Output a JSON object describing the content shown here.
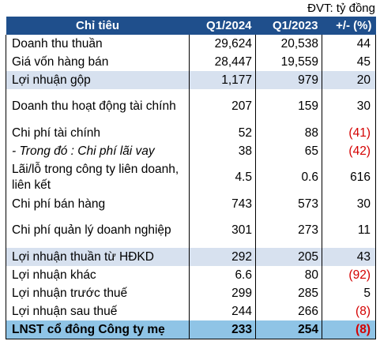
{
  "unit_label": "ĐVT: tỷ đồng",
  "headers": [
    "Chỉ tiêu",
    "Q1/2024",
    "Q1/2023",
    "+/- (%)"
  ],
  "rows": [
    {
      "label": "Doanh thu thuần",
      "q1_2024": "29,624",
      "q1_2023": "20,538",
      "change": "44",
      "negative": false,
      "highlight": false,
      "italic": false,
      "tall": false
    },
    {
      "label": "Giá vốn hàng bán",
      "q1_2024": "28,447",
      "q1_2023": "19,559",
      "change": "45",
      "negative": false,
      "highlight": false,
      "italic": false,
      "tall": false
    },
    {
      "label": "Lợi nhuận gộp",
      "q1_2024": "1,177",
      "q1_2023": "979",
      "change": "20",
      "negative": false,
      "highlight": true,
      "italic": false,
      "tall": false
    },
    {
      "label": "Doanh thu hoạt động tài chính",
      "q1_2024": "207",
      "q1_2023": "159",
      "change": "30",
      "negative": false,
      "highlight": false,
      "italic": false,
      "tall": true
    },
    {
      "label": "Chi phí tài chính",
      "q1_2024": "52",
      "q1_2023": "88",
      "change": "(41)",
      "negative": true,
      "highlight": false,
      "italic": false,
      "tall": false
    },
    {
      "label": "- Trong đó : Chi phí lãi vay",
      "q1_2024": "38",
      "q1_2023": "65",
      "change": "(42)",
      "negative": true,
      "highlight": false,
      "italic": true,
      "tall": false
    },
    {
      "label": "Lãi/lỗ trong công ty liên doanh, liên kết",
      "q1_2024": "4.5",
      "q1_2023": "0.6",
      "change": "616",
      "negative": false,
      "highlight": false,
      "italic": false,
      "tall": true
    },
    {
      "label": "Chi phí bán hàng",
      "q1_2024": "743",
      "q1_2023": "573",
      "change": "30",
      "negative": false,
      "highlight": false,
      "italic": false,
      "tall": false
    },
    {
      "label": "Chi phí quản lý doanh nghiệp",
      "q1_2024": "301",
      "q1_2023": "273",
      "change": "11",
      "negative": false,
      "highlight": false,
      "italic": false,
      "tall": true
    },
    {
      "label": "Lợi nhuận thuần từ HĐKD",
      "q1_2024": "292",
      "q1_2023": "205",
      "change": "43",
      "negative": false,
      "highlight": true,
      "italic": false,
      "tall": false
    },
    {
      "label": "Lợi nhuận khác",
      "q1_2024": "6.6",
      "q1_2023": "80",
      "change": "(92)",
      "negative": true,
      "highlight": false,
      "italic": false,
      "tall": false
    },
    {
      "label": "Lợi nhuận trước thuế",
      "q1_2024": "299",
      "q1_2023": "285",
      "change": "5",
      "negative": false,
      "highlight": false,
      "italic": false,
      "tall": false
    },
    {
      "label": "Lợi nhuận sau thuế",
      "q1_2024": "244",
      "q1_2023": "266",
      "change": "(8)",
      "negative": true,
      "highlight": false,
      "italic": false,
      "tall": false
    },
    {
      "label": "LNST cổ đông Công ty mẹ",
      "q1_2024": "233",
      "q1_2023": "254",
      "change": "(8)",
      "negative": true,
      "highlight": false,
      "italic": false,
      "tall": false,
      "total": true
    }
  ],
  "colors": {
    "header_bg": "#1f4f8c",
    "highlight_bg": "#d7e1ef",
    "total_bg": "#8fc4e6",
    "negative_text": "#d40000"
  }
}
